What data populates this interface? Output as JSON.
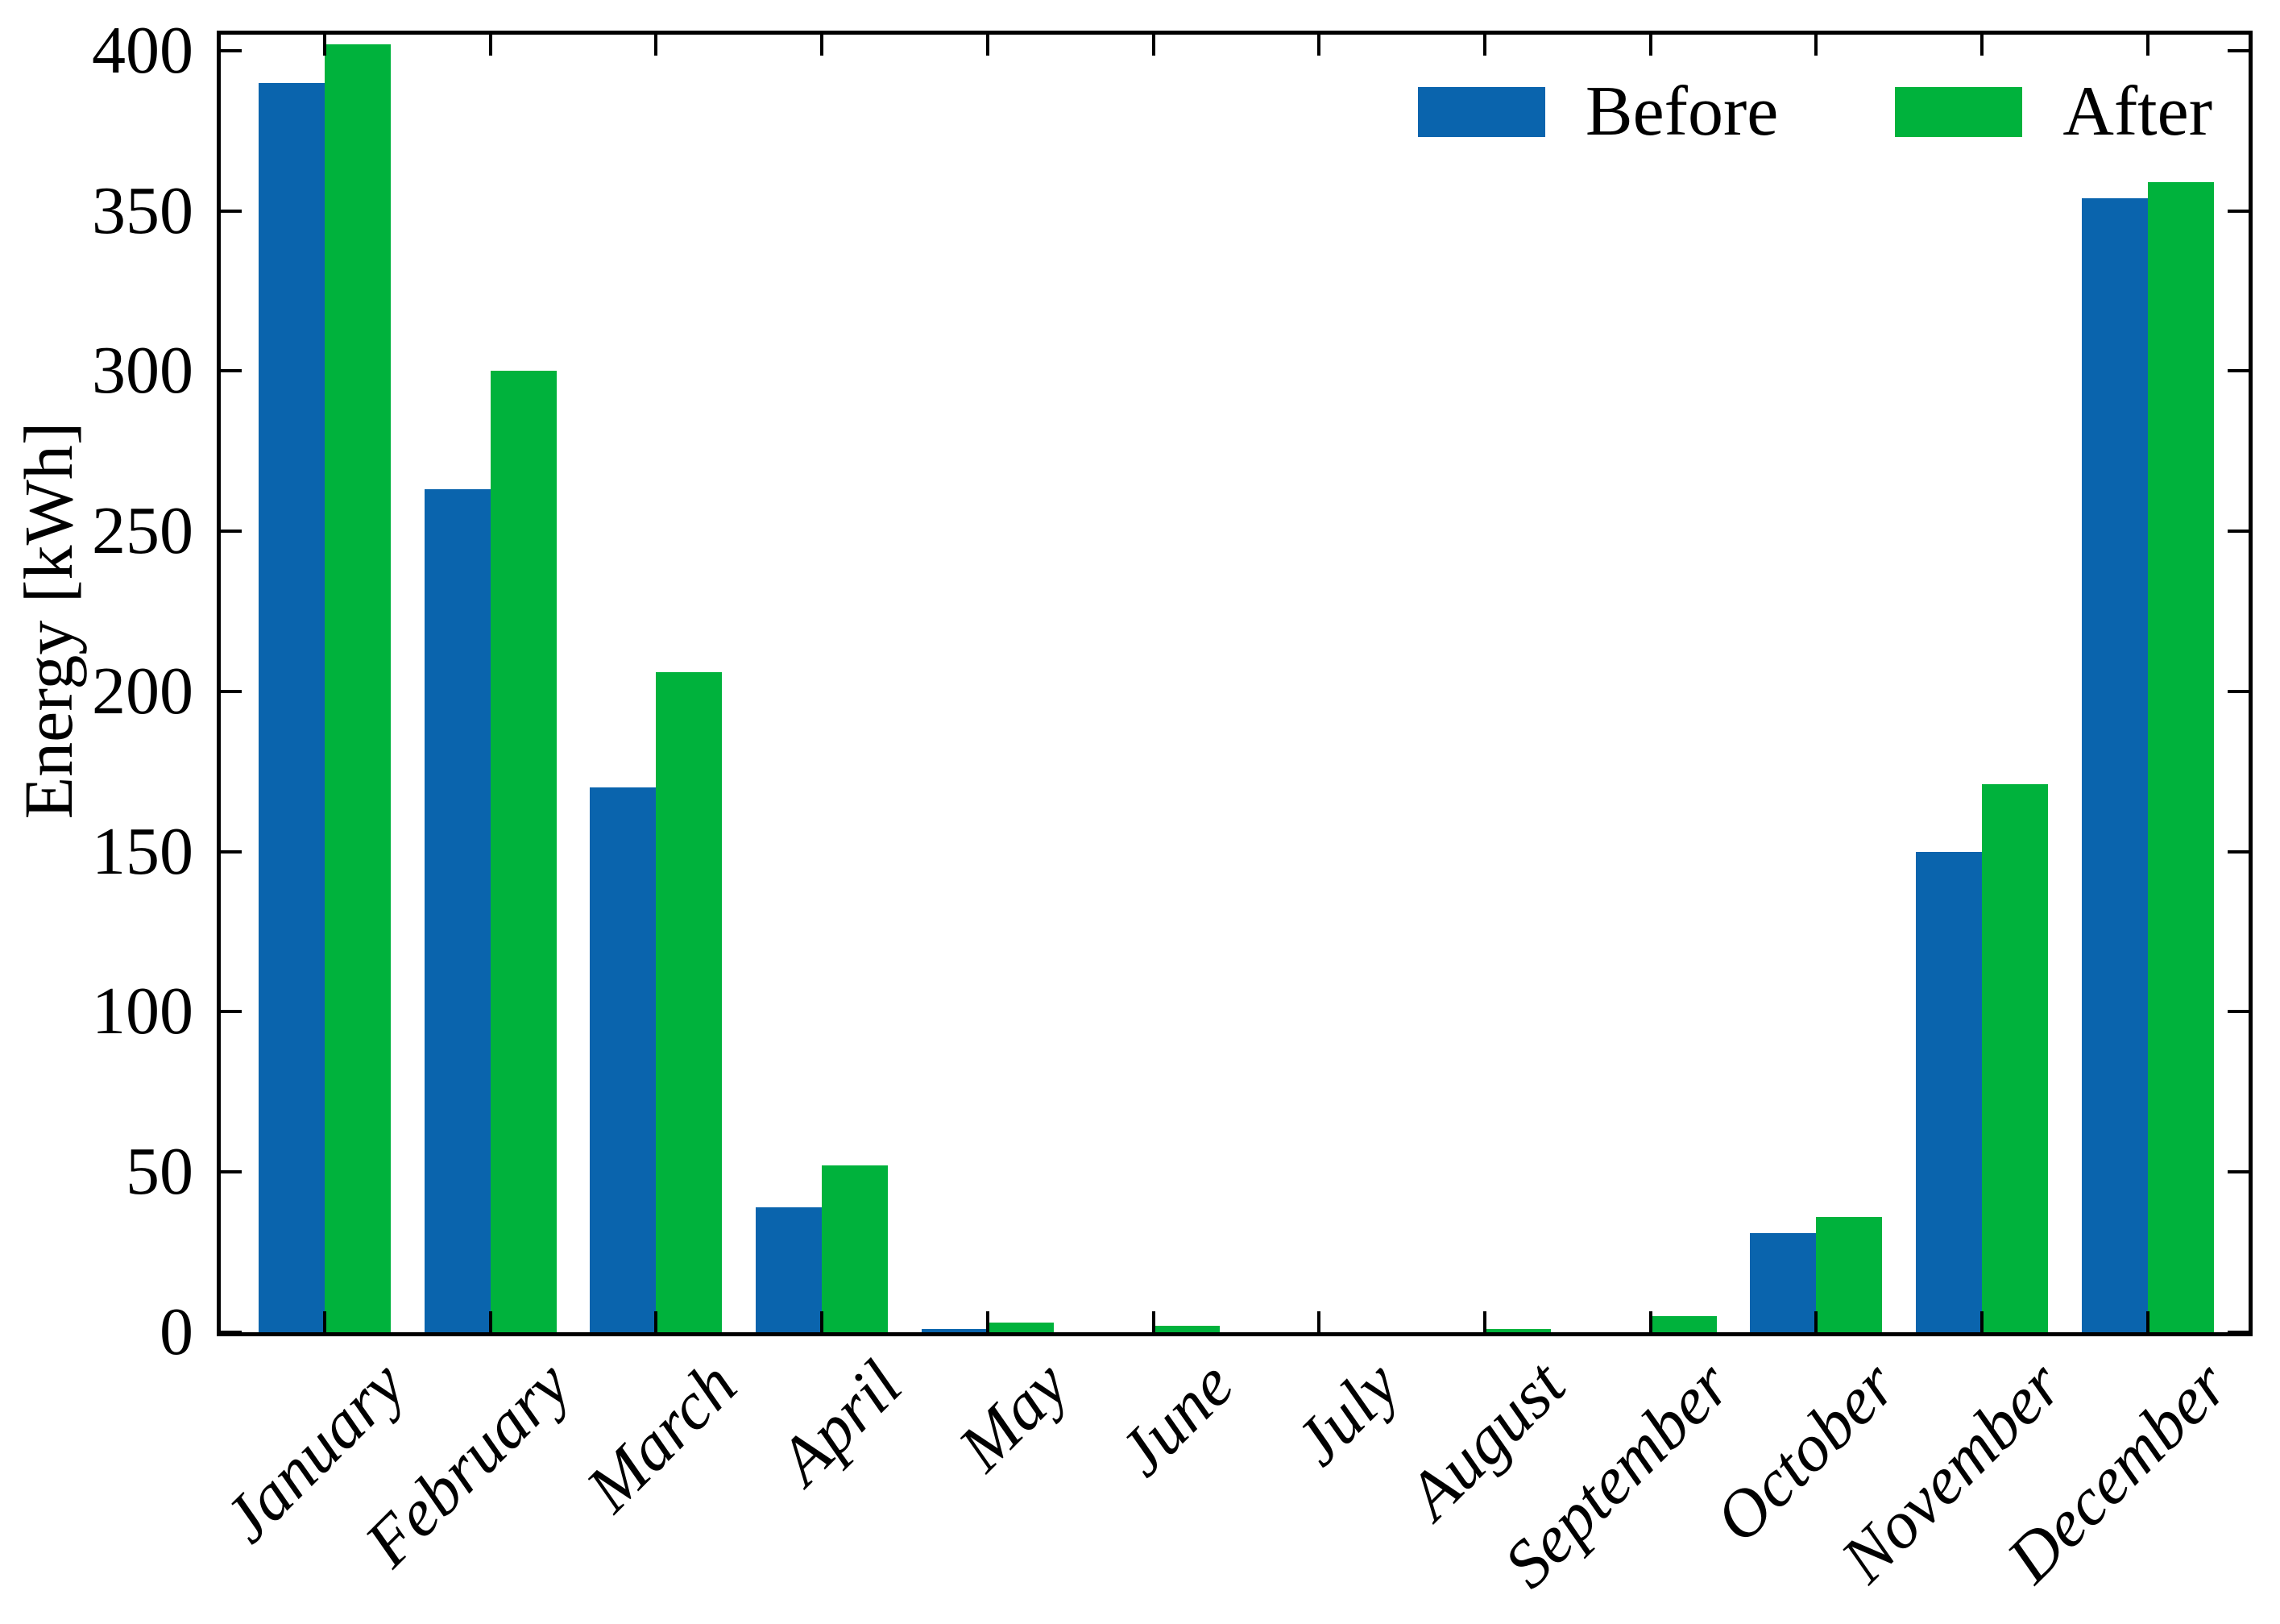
{
  "chart_data": {
    "type": "bar",
    "title": "",
    "xlabel": "",
    "ylabel": "Energy [kWh]",
    "categories": [
      "January",
      "February",
      "March",
      "April",
      "May",
      "June",
      "July",
      "August",
      "September",
      "October",
      "November",
      "December"
    ],
    "series": [
      {
        "name": "Before",
        "color": "#0a64ad",
        "values": [
          390,
          263,
          170,
          39,
          1,
          0,
          0,
          0,
          0,
          31,
          150,
          354
        ]
      },
      {
        "name": "After",
        "color": "#00b23c",
        "values": [
          402,
          300,
          206,
          52,
          3,
          2,
          0,
          1,
          5,
          36,
          171,
          359
        ]
      }
    ],
    "ylim": [
      0,
      405
    ],
    "yticks": [
      0,
      50,
      100,
      150,
      200,
      250,
      300,
      350,
      400
    ],
    "legend_position": "upper right",
    "grid": false,
    "axis_color": "#000000",
    "background_color": "#ffffff"
  }
}
